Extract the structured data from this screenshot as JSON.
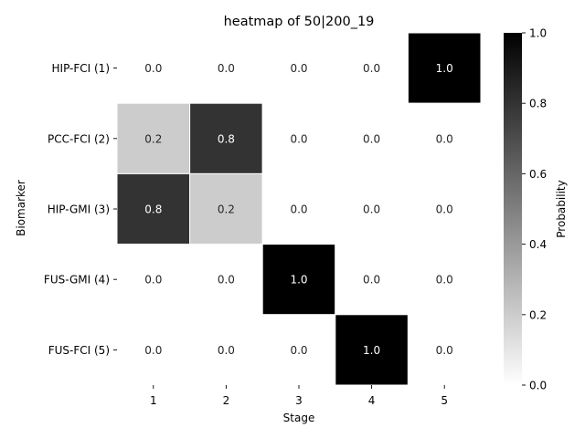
{
  "chart_data": {
    "type": "heatmap",
    "title": "heatmap of 50|200_19",
    "xlabel": "Stage",
    "ylabel": "Biomarker",
    "x_categories": [
      "1",
      "2",
      "3",
      "4",
      "5"
    ],
    "y_categories": [
      "HIP-FCI (1)",
      "PCC-FCI (2)",
      "HIP-GMI (3)",
      "FUS-GMI (4)",
      "FUS-FCI (5)"
    ],
    "values": [
      [
        0.0,
        0.0,
        0.0,
        0.0,
        1.0
      ],
      [
        0.2,
        0.8,
        0.0,
        0.0,
        0.0
      ],
      [
        0.8,
        0.2,
        0.0,
        0.0,
        0.0
      ],
      [
        0.0,
        0.0,
        1.0,
        0.0,
        0.0
      ],
      [
        0.0,
        0.0,
        0.0,
        1.0,
        0.0
      ]
    ],
    "value_format": "0.0",
    "colormap": "Greys",
    "colorbar": {
      "label": "Probability",
      "range": [
        0.0,
        1.0
      ],
      "ticks": [
        "0.0",
        "0.2",
        "0.4",
        "0.6",
        "0.8",
        "1.0"
      ],
      "placement": "right"
    },
    "cell_border_color": "#ffffff",
    "annotation_colors": {
      "light_cell": "#262626",
      "dark_cell": "#ffffff"
    }
  }
}
